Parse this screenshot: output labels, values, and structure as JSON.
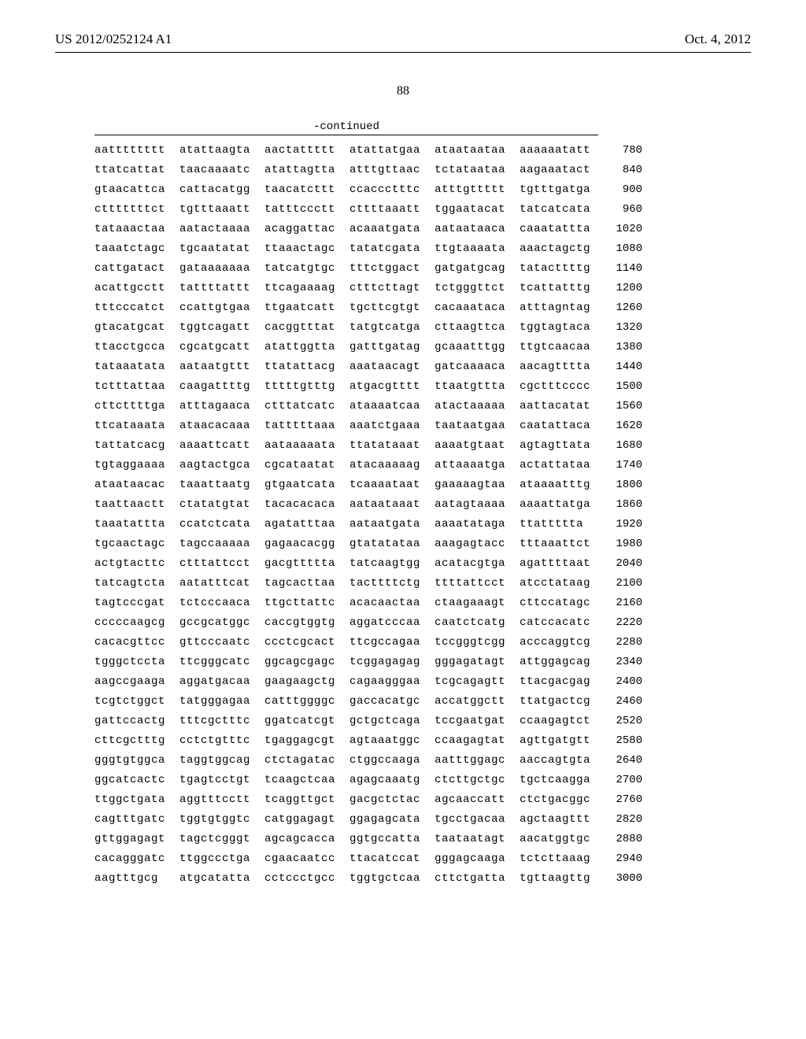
{
  "header": {
    "left": "US 2012/0252124 A1",
    "right": "Oct. 4, 2012"
  },
  "page_number": "88",
  "continued_label": "-continued",
  "sequence": {
    "rows": [
      {
        "blocks": [
          "aatttttttt",
          "atattaagta",
          "aactattttt",
          "atattatgaa",
          "ataataataa",
          "aaaaaatatt"
        ],
        "pos": "780"
      },
      {
        "blocks": [
          "ttatcattat",
          "taacaaaatc",
          "atattagtta",
          "atttgttaac",
          "tctataataa",
          "aagaaatact"
        ],
        "pos": "840"
      },
      {
        "blocks": [
          "gtaacattca",
          "cattacatgg",
          "taacatcttt",
          "ccaccctttc",
          "atttgttttt",
          "tgtttgatga"
        ],
        "pos": "900"
      },
      {
        "blocks": [
          "ctttttttct",
          "tgtttaaatt",
          "tatttccctt",
          "cttttaaatt",
          "tggaatacat",
          "tatcatcata"
        ],
        "pos": "960"
      },
      {
        "blocks": [
          "tataaactaa",
          "aatactaaaa",
          "acaggattac",
          "acaaatgata",
          "aataataaca",
          "caaatattta"
        ],
        "pos": "1020"
      },
      {
        "blocks": [
          "taaatctagc",
          "tgcaatatat",
          "ttaaactagc",
          "tatatcgata",
          "ttgtaaaata",
          "aaactagctg"
        ],
        "pos": "1080"
      },
      {
        "blocks": [
          "cattgatact",
          "gataaaaaaa",
          "tatcatgtgc",
          "tttctggact",
          "gatgatgcag",
          "tatacttttg"
        ],
        "pos": "1140"
      },
      {
        "blocks": [
          "acattgcctt",
          "tattttattt",
          "ttcagaaaag",
          "ctttcttagt",
          "tctgggttct",
          "tcattatttg"
        ],
        "pos": "1200"
      },
      {
        "blocks": [
          "tttcccatct",
          "ccattgtgaa",
          "ttgaatcatt",
          "tgcttcgtgt",
          "cacaaataca",
          "atttagntag"
        ],
        "pos": "1260"
      },
      {
        "blocks": [
          "gtacatgcat",
          "tggtcagatt",
          "cacggtttat",
          "tatgtcatga",
          "cttaagttca",
          "tggtagtaca"
        ],
        "pos": "1320"
      },
      {
        "blocks": [
          "ttacctgcca",
          "cgcatgcatt",
          "atattggtta",
          "gatttgatag",
          "gcaaatttgg",
          "ttgtcaacaa"
        ],
        "pos": "1380"
      },
      {
        "blocks": [
          "tataaatata",
          "aataatgttt",
          "ttatattacg",
          "aaataacagt",
          "gatcaaaaca",
          "aacagtttta"
        ],
        "pos": "1440"
      },
      {
        "blocks": [
          "tctttattaa",
          "caagattttg",
          "tttttgtttg",
          "atgacgtttt",
          "ttaatgttta",
          "cgctttcccc"
        ],
        "pos": "1500"
      },
      {
        "blocks": [
          "cttcttttga",
          "atttagaaca",
          "ctttatcatc",
          "ataaaatcaa",
          "atactaaaaa",
          "aattacatat"
        ],
        "pos": "1560"
      },
      {
        "blocks": [
          "ttcataaata",
          "ataacacaaa",
          "tatttttaaa",
          "aaatctgaaa",
          "taataatgaa",
          "caatattaca"
        ],
        "pos": "1620"
      },
      {
        "blocks": [
          "tattatcacg",
          "aaaattcatt",
          "aataaaaata",
          "ttatataaat",
          "aaaatgtaat",
          "agtagttata"
        ],
        "pos": "1680"
      },
      {
        "blocks": [
          "tgtaggaaaa",
          "aagtactgca",
          "cgcataatat",
          "atacaaaaag",
          "attaaaatga",
          "actattataa"
        ],
        "pos": "1740"
      },
      {
        "blocks": [
          "ataataacac",
          "taaattaatg",
          "gtgaatcata",
          "tcaaaataat",
          "gaaaaagtaa",
          "ataaaatttg"
        ],
        "pos": "1800"
      },
      {
        "blocks": [
          "taattaactt",
          "ctatatgtat",
          "tacacacaca",
          "aataataaat",
          "aatagtaaaa",
          "aaaattatga"
        ],
        "pos": "1860"
      },
      {
        "blocks": [
          "taaatattta",
          "ccatctcata",
          "agatatttaa",
          "aataatgata",
          "aaaatataga",
          "ttattttta"
        ],
        "pos": "1920"
      },
      {
        "blocks": [
          "tgcaactagc",
          "tagccaaaaa",
          "gagaacacgg",
          "gtatatataa",
          "aaagagtacc",
          "tttaaattct"
        ],
        "pos": "1980"
      },
      {
        "blocks": [
          "actgtacttc",
          "ctttattcct",
          "gacgttttta",
          "tatcaagtgg",
          "acatacgtga",
          "agattttaat"
        ],
        "pos": "2040"
      },
      {
        "blocks": [
          "tatcagtcta",
          "aatatttcat",
          "tagcacttaa",
          "tacttttctg",
          "ttttattcct",
          "atcctataag"
        ],
        "pos": "2100"
      },
      {
        "blocks": [
          "tagtcccgat",
          "tctcccaaca",
          "ttgcttattc",
          "acacaactaa",
          "ctaagaaagt",
          "cttccatagc"
        ],
        "pos": "2160"
      },
      {
        "blocks": [
          "cccccaagcg",
          "gccgcatggc",
          "caccgtggtg",
          "aggatcccaa",
          "caatctcatg",
          "catccacatc"
        ],
        "pos": "2220"
      },
      {
        "blocks": [
          "cacacgttcc",
          "gttcccaatc",
          "ccctcgcact",
          "ttcgccagaa",
          "tccgggtcgg",
          "acccaggtcg"
        ],
        "pos": "2280"
      },
      {
        "blocks": [
          "tgggctccta",
          "ttcgggcatc",
          "ggcagcgagc",
          "tcggagagag",
          "gggagatagt",
          "attggagcag"
        ],
        "pos": "2340"
      },
      {
        "blocks": [
          "aagccgaaga",
          "aggatgacaa",
          "gaagaagctg",
          "cagaagggaa",
          "tcgcagagtt",
          "ttacgacgag"
        ],
        "pos": "2400"
      },
      {
        "blocks": [
          "tcgtctggct",
          "tatgggagaa",
          "catttggggc",
          "gaccacatgc",
          "accatggctt",
          "ttatgactcg"
        ],
        "pos": "2460"
      },
      {
        "blocks": [
          "gattccactg",
          "tttcgctttc",
          "ggatcatcgt",
          "gctgctcaga",
          "tccgaatgat",
          "ccaagagtct"
        ],
        "pos": "2520"
      },
      {
        "blocks": [
          "cttcgctttg",
          "cctctgtttc",
          "tgaggagcgt",
          "agtaaatggc",
          "ccaagagtat",
          "agttgatgtt"
        ],
        "pos": "2580"
      },
      {
        "blocks": [
          "gggtgtggca",
          "taggtggcag",
          "ctctagatac",
          "ctggccaaga",
          "aatttggagc",
          "aaccagtgta"
        ],
        "pos": "2640"
      },
      {
        "blocks": [
          "ggcatcactc",
          "tgagtcctgt",
          "tcaagctcaa",
          "agagcaaatg",
          "ctcttgctgc",
          "tgctcaagga"
        ],
        "pos": "2700"
      },
      {
        "blocks": [
          "ttggctgata",
          "aggtttcctt",
          "tcaggttgct",
          "gacgctctac",
          "agcaaccatt",
          "ctctgacggc"
        ],
        "pos": "2760"
      },
      {
        "blocks": [
          "cagtttgatc",
          "tggtgtggtc",
          "catggagagt",
          "ggagagcata",
          "tgcctgacaa",
          "agctaagttt"
        ],
        "pos": "2820"
      },
      {
        "blocks": [
          "gttggagagt",
          "tagctcgggt",
          "agcagcacca",
          "ggtgccatta",
          "taataatagt",
          "aacatggtgc"
        ],
        "pos": "2880"
      },
      {
        "blocks": [
          "cacagggatc",
          "ttggccctga",
          "cgaacaatcc",
          "ttacatccat",
          "gggagcaaga",
          "tctcttaaag"
        ],
        "pos": "2940"
      },
      {
        "blocks": [
          "aagtttgcg",
          "atgcatatta",
          "cctccctgcc",
          "tggtgctcaa",
          "cttctgatta",
          "tgttaagttg"
        ],
        "pos": "3000"
      }
    ]
  }
}
